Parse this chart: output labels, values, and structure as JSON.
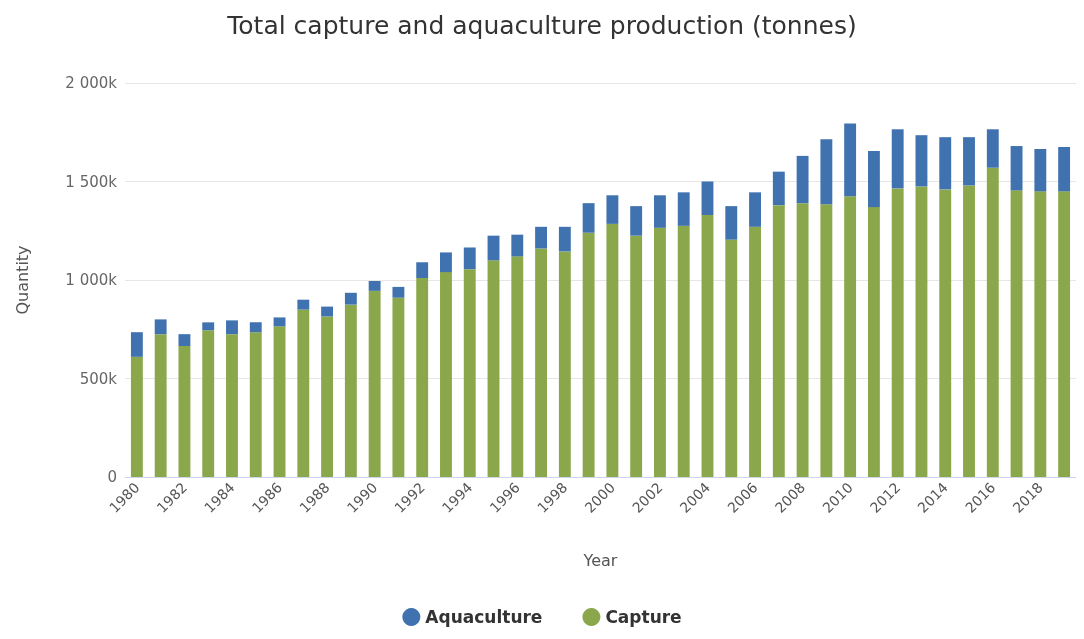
{
  "chart_data": {
    "type": "bar",
    "title": "Total capture and aquaculture production (tonnes)",
    "xlabel": "Year",
    "ylabel": "Quantity",
    "categories": [
      "1980",
      null,
      "1982",
      null,
      "1984",
      null,
      "1986",
      null,
      "1988",
      null,
      "1990",
      null,
      "1992",
      null,
      "1994",
      null,
      "1996",
      null,
      "1998",
      null,
      "2000",
      null,
      "2002",
      null,
      "2004",
      null,
      "2006",
      null,
      "2008",
      null,
      "2010",
      null,
      "2012",
      null,
      "2014",
      null,
      "2016",
      null,
      "2018",
      null
    ],
    "series": [
      {
        "name": "Capture",
        "color": "#8aa84b",
        "values": [
          610000,
          725000,
          665000,
          745000,
          725000,
          735000,
          765000,
          850000,
          815000,
          875000,
          945000,
          910000,
          1010000,
          1040000,
          1055000,
          1100000,
          1120000,
          1160000,
          1145000,
          1240000,
          1285000,
          1225000,
          1265000,
          1275000,
          1330000,
          1205000,
          1270000,
          1380000,
          1390000,
          1385000,
          1425000,
          1370000,
          1465000,
          1475000,
          1460000,
          1480000,
          1570000,
          1455000,
          1450000,
          1450000
        ]
      },
      {
        "name": "Aquaculture",
        "color": "#3f72af",
        "values": [
          125000,
          75000,
          60000,
          40000,
          70000,
          50000,
          45000,
          50000,
          50000,
          60000,
          50000,
          55000,
          80000,
          100000,
          110000,
          125000,
          110000,
          110000,
          125000,
          150000,
          145000,
          150000,
          165000,
          170000,
          170000,
          170000,
          175000,
          170000,
          240000,
          330000,
          370000,
          285000,
          300000,
          260000,
          265000,
          245000,
          195000,
          225000,
          215000,
          225000
        ]
      }
    ],
    "stacked": true,
    "ylim": [
      0,
      2000000
    ],
    "yticks": [
      0,
      {
        "value": 500000,
        "label": "500k"
      },
      {
        "value": 1000000,
        "label": "1 000k"
      },
      {
        "value": 1500000,
        "label": "1 500k"
      },
      {
        "value": 2000000,
        "label": "2 000k"
      }
    ],
    "grid": "y",
    "legend": "bottom"
  }
}
